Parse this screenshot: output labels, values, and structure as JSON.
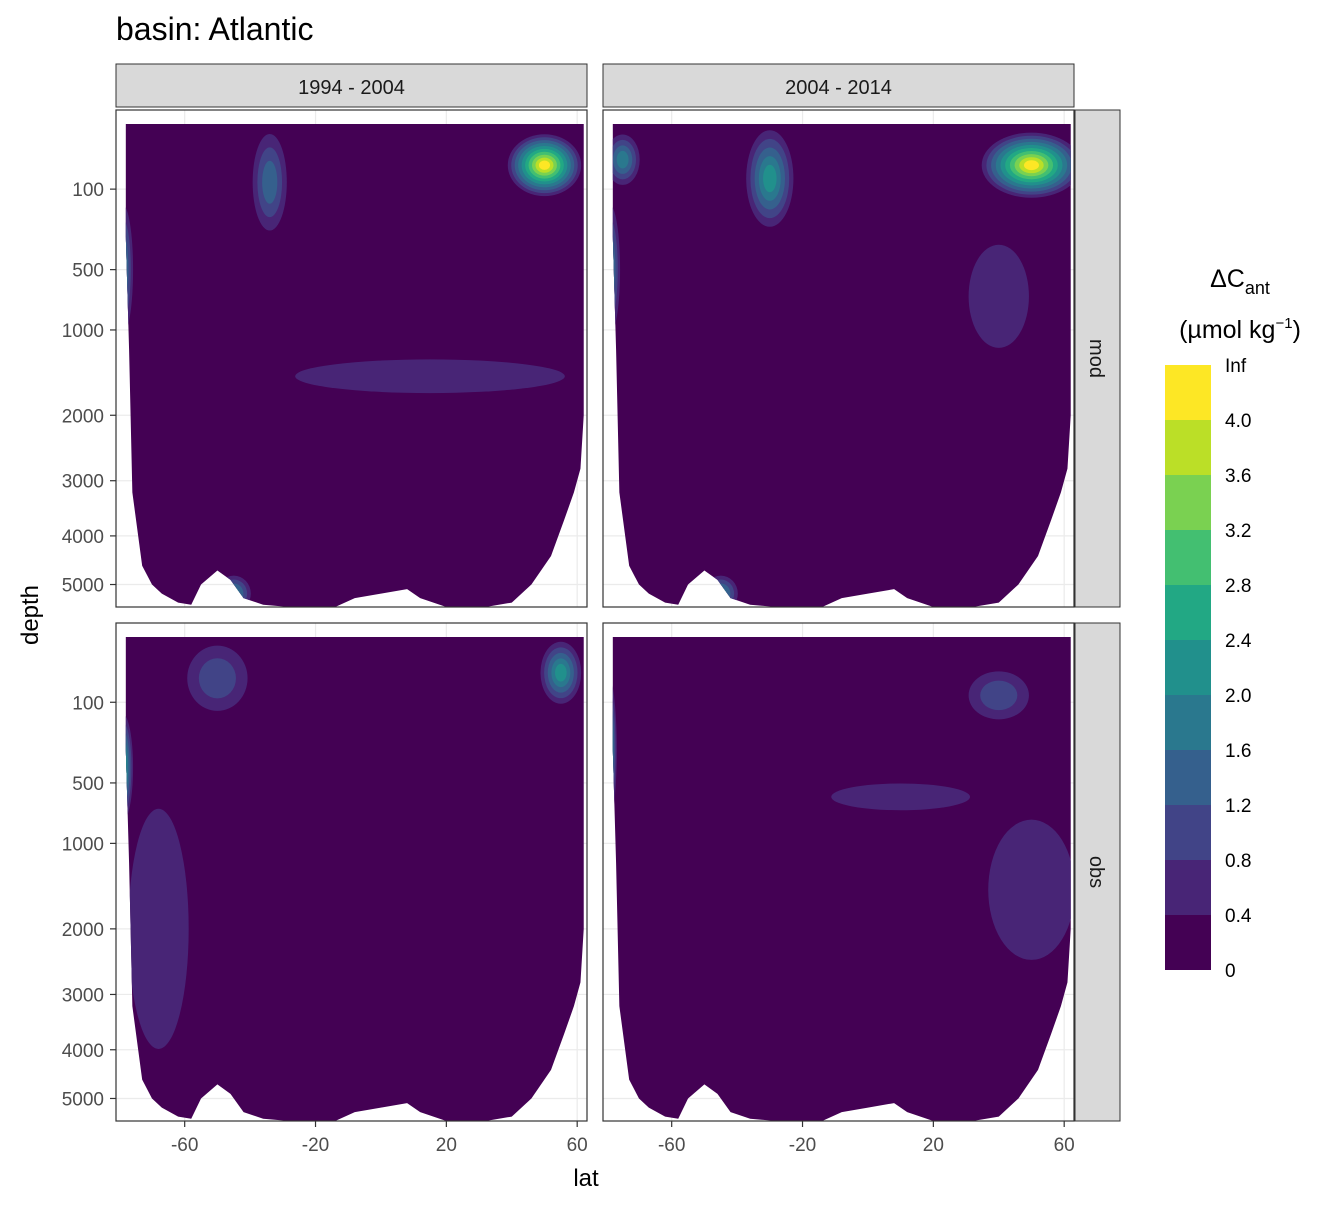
{
  "chart_data": {
    "type": "contour",
    "title": "basin: Atlantic",
    "xlabel": "lat",
    "ylabel": "depth",
    "y_scale": "reversed-sqrt",
    "x_ticks": [
      -60,
      -20,
      20,
      60
    ],
    "x_tick_labels": [
      "-60",
      "-20",
      "20",
      "60"
    ],
    "y_ticks": [
      100,
      500,
      1000,
      2000,
      3000,
      4000,
      5000
    ],
    "y_tick_labels": [
      "100",
      "500",
      "1000",
      "2000",
      "3000",
      "4000",
      "5000"
    ],
    "xlim": [
      -81,
      63
    ],
    "ylim": [
      5500,
      0
    ],
    "columns": [
      "1994 - 2004",
      "2004 - 2014"
    ],
    "rows": [
      "mod",
      "obs"
    ],
    "legend": {
      "title_main": "ΔC",
      "title_sub": "ant",
      "units_open": "(",
      "units_main": "µmol kg",
      "units_sup": "−1",
      "units_close": ")",
      "placement": "right",
      "breaks": [
        "0",
        "0.4",
        "0.8",
        "1.2",
        "1.6",
        "2.0",
        "2.4",
        "2.8",
        "3.2",
        "3.6",
        "4.0",
        "Inf"
      ],
      "colors": [
        "#440154",
        "#482576",
        "#414487",
        "#35608D",
        "#2A788E",
        "#21908C",
        "#22A884",
        "#43BF71",
        "#7AD151",
        "#BBDF27",
        "#FDE725"
      ]
    },
    "panels": [
      {
        "col": "1994 - 2004",
        "row": "mod",
        "features": [
          {
            "lat": 50,
            "depth": 40,
            "level": 10,
            "rx": 10,
            "ry": 50
          },
          {
            "lat": -34,
            "depth": 80,
            "level": 3,
            "rx": 4,
            "ry": 140
          },
          {
            "lat": -79,
            "depth": 500,
            "level": 4,
            "rx": 2,
            "ry": 400
          },
          {
            "lat": -45,
            "depth": 5200,
            "level": 4,
            "rx": 4,
            "ry": 400
          },
          {
            "lat": 15,
            "depth": 1500,
            "level": 1,
            "rx": 40,
            "ry": 200
          }
        ]
      },
      {
        "col": "2004 - 2014",
        "row": "mod",
        "features": [
          {
            "lat": 50,
            "depth": 40,
            "level": 10,
            "rx": 14,
            "ry": 60
          },
          {
            "lat": -30,
            "depth": 70,
            "level": 5,
            "rx": 6,
            "ry": 150
          },
          {
            "lat": -75,
            "depth": 30,
            "level": 4,
            "rx": 4,
            "ry": 30
          },
          {
            "lat": -79,
            "depth": 500,
            "level": 4,
            "rx": 2,
            "ry": 400
          },
          {
            "lat": -45,
            "depth": 5200,
            "level": 4,
            "rx": 4,
            "ry": 400
          },
          {
            "lat": 40,
            "depth": 700,
            "level": 1,
            "rx": 8,
            "ry": 400
          }
        ]
      },
      {
        "col": "1994 - 2004",
        "row": "obs",
        "features": [
          {
            "lat": 55,
            "depth": 30,
            "level": 5,
            "rx": 5,
            "ry": 60
          },
          {
            "lat": -79,
            "depth": 400,
            "level": 6,
            "rx": 2,
            "ry": 300
          },
          {
            "lat": -68,
            "depth": 2000,
            "level": 1,
            "rx": 8,
            "ry": 1500
          },
          {
            "lat": -50,
            "depth": 40,
            "level": 2,
            "rx": 8,
            "ry": 60
          }
        ]
      },
      {
        "col": "2004 - 2014",
        "row": "obs",
        "features": [
          {
            "lat": -80,
            "depth": 300,
            "level": 8,
            "rx": 2,
            "ry": 300
          },
          {
            "lat": 10,
            "depth": 600,
            "level": 1,
            "rx": 20,
            "ry": 100
          },
          {
            "lat": 50,
            "depth": 1500,
            "level": 1,
            "rx": 12,
            "ry": 800
          },
          {
            "lat": 40,
            "depth": 80,
            "level": 2,
            "rx": 8,
            "ry": 60
          }
        ]
      }
    ]
  }
}
